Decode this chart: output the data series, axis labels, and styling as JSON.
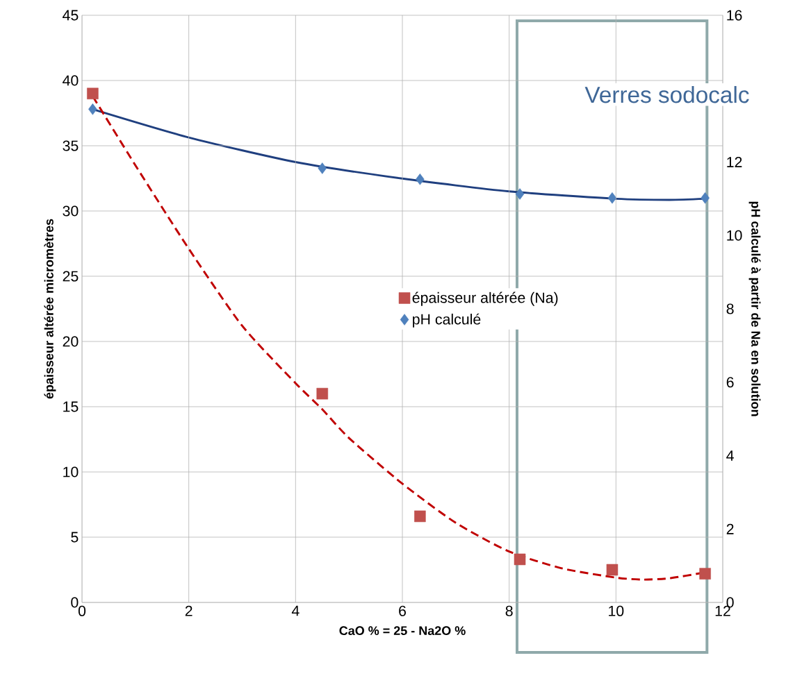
{
  "chart_data": {
    "type": "scatter",
    "xlabel": "CaO % = 25 - Na2O %",
    "ylabel": "épaisseur altérée micromètres",
    "y2label": "pH calculé à partir de Na en solution",
    "xlim": [
      0,
      12
    ],
    "xticks": [
      0,
      2,
      4,
      6,
      8,
      10,
      12
    ],
    "ylim": [
      0,
      45
    ],
    "yticks": [
      0,
      5,
      10,
      15,
      20,
      25,
      30,
      35,
      40,
      45
    ],
    "y2lim": [
      0,
      16
    ],
    "y2ticks": [
      0,
      2,
      4,
      6,
      8,
      10,
      12,
      16
    ],
    "grid": true,
    "legend": "center",
    "annotations": [
      "Verres sodocalc"
    ],
    "series": [
      {
        "name": "épaisseur altérée (Na)",
        "color": "#c0504d",
        "marker": "square",
        "x": [
          0.2,
          4.5,
          6.33,
          8.2,
          9.93,
          11.67
        ],
        "values": [
          39,
          16,
          6.6,
          3.3,
          2.5,
          2.2
        ]
      },
      {
        "type": "line",
        "color": "#c00000",
        "line_style": "dashed",
        "x": [
          0.2,
          1,
          2,
          3,
          4,
          4.5,
          5,
          6,
          7,
          8,
          9,
          10,
          10.5,
          11,
          11.67
        ],
        "values": [
          38.8,
          33.5,
          27.1,
          21.2,
          16.8,
          14.8,
          12.6,
          9.1,
          6.1,
          3.9,
          2.6,
          1.9,
          1.75,
          1.85,
          2.3
        ]
      },
      {
        "name": "pH calculé",
        "color": "#4f81bd",
        "marker": "diamond",
        "axis": "y2",
        "x": [
          0.2,
          4.5,
          6.33,
          8.2,
          9.93,
          11.67
        ],
        "values": [
          13.44,
          11.83,
          11.53,
          11.13,
          11.02,
          11.02
        ]
      },
      {
        "type": "line",
        "color": "#1f3f7f",
        "line_style": "solid",
        "axis": "y2",
        "x": [
          0.2,
          2,
          4,
          6,
          8,
          10,
          11,
          11.67
        ],
        "values": [
          13.44,
          12.67,
          12.0,
          11.55,
          11.2,
          11.0,
          10.97,
          11.0
        ]
      }
    ]
  }
}
